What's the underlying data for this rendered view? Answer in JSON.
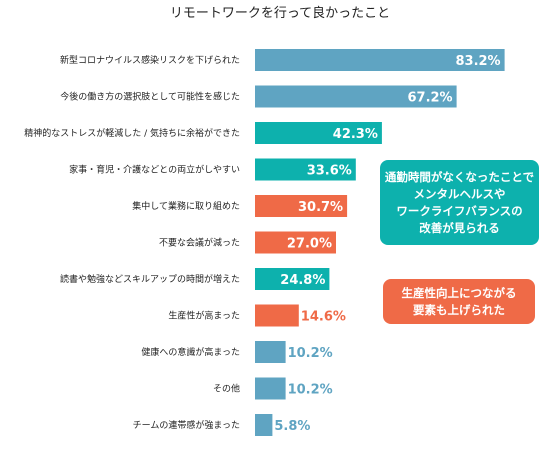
{
  "chart_data": {
    "type": "bar",
    "orientation": "horizontal",
    "title": "リモートワークを行って良かったこと",
    "unit": "%",
    "categories": [
      "新型コロナウイルス感染リスクを下げられた",
      "今後の働き方の選択肢として可能性を感じた",
      "精神的なストレスが軽減した / 気持ちに余裕ができた",
      "家事・育児・介護などとの両立がしやすい",
      "集中して業務に取り組めた",
      "不要な会議が減った",
      "読書や勉強などスキルアップの時間が増えた",
      "生産性が高まった",
      "健康への意識が高まった",
      "その他",
      "チームの連帯感が強まった"
    ],
    "values": [
      83.2,
      67.2,
      42.3,
      33.6,
      30.7,
      27.0,
      24.8,
      14.6,
      10.2,
      10.2,
      5.8
    ],
    "value_labels": [
      "83.2%",
      "67.2%",
      "42.3%",
      "33.6%",
      "30.7%",
      "27.0%",
      "24.8%",
      "14.6%",
      "10.2%",
      "10.2%",
      "5.8%"
    ],
    "groups": [
      "other",
      "other",
      "mental",
      "mental",
      "productivity",
      "productivity",
      "mental",
      "productivity",
      "other",
      "other",
      "other"
    ],
    "colors": {
      "other": "#5fa4c2",
      "mental": "#0db1ad",
      "productivity": "#ef6a47"
    },
    "xlim": [
      0,
      100
    ],
    "grid": false,
    "legend": "none"
  },
  "callouts": {
    "mental": {
      "lines": [
        "通勤時間がなくなったことで",
        "メンタルヘルスや",
        "ワークライフバランスの",
        "改善が見られる"
      ],
      "color": "#0db1ad"
    },
    "productivity": {
      "lines": [
        "生産性向上につながる",
        "要素も上げられた"
      ],
      "color": "#ef6a47"
    }
  }
}
